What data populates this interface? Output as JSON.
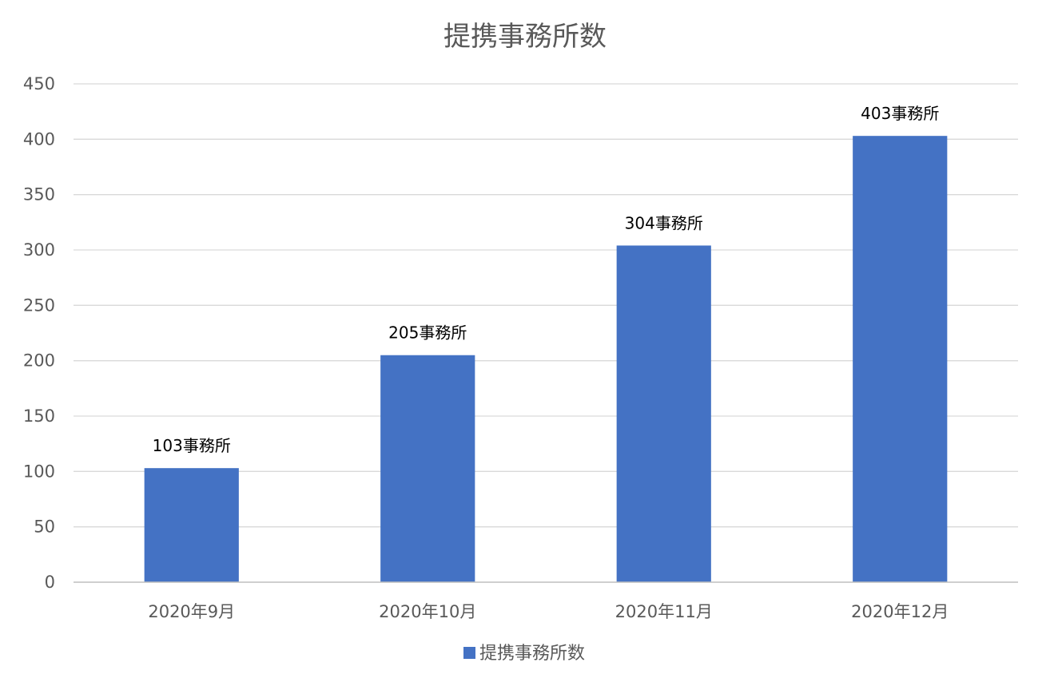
{
  "chart_data": {
    "type": "bar",
    "title": "提携事務所数",
    "categories": [
      "2020年9月",
      "2020年10月",
      "2020年11月",
      "2020年12月"
    ],
    "series": [
      {
        "name": "提携事務所数",
        "values": [
          103,
          205,
          304,
          403
        ],
        "data_labels": [
          "103事務所",
          "205事務所",
          "304事務所",
          "403事務所"
        ],
        "color": "#4472c4"
      }
    ],
    "yticks": [
      0,
      50,
      100,
      150,
      200,
      250,
      300,
      350,
      400,
      450
    ],
    "ylim": [
      0,
      450
    ],
    "grid": true,
    "legend_position": "bottom"
  }
}
